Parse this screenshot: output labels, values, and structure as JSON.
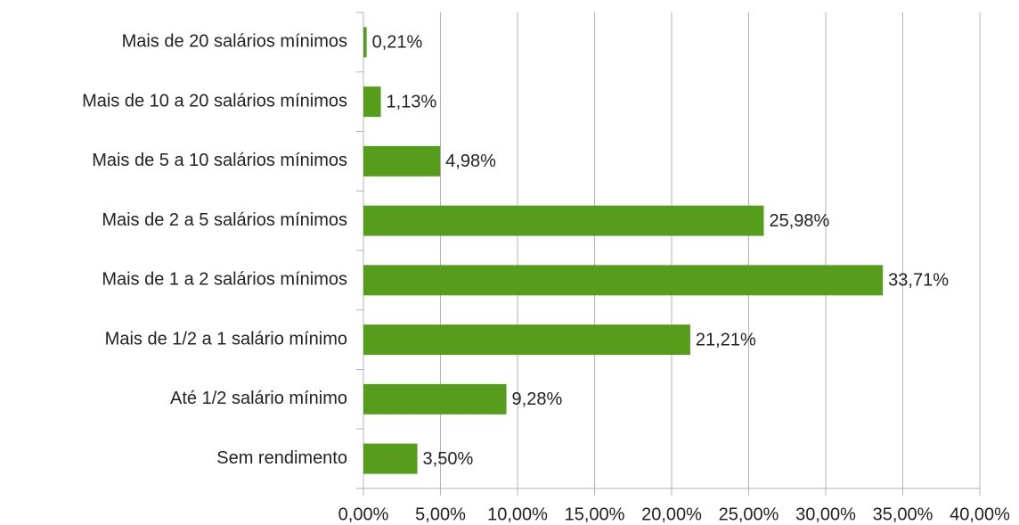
{
  "chart_data": {
    "type": "hbar",
    "categories": [
      "Mais de 20 salários mínimos",
      "Mais de 10 a 20 salários mínimos",
      "Mais de 5 a 10 salários mínimos",
      "Mais de 2 a 5 salários mínimos",
      "Mais de 1 a 2 salários mínimos",
      "Mais de 1/2 a 1 salário mínimo",
      "Até 1/2 salário mínimo",
      "Sem rendimento"
    ],
    "values": [
      0.21,
      1.13,
      4.98,
      25.98,
      33.71,
      21.21,
      9.28,
      3.5
    ],
    "value_labels": [
      "0,21%",
      "1,13%",
      "4,98%",
      "25,98%",
      "33,71%",
      "21,21%",
      "9,28%",
      "3,50%"
    ],
    "color": "#579d1c",
    "xlim": [
      0,
      40
    ],
    "xticks": [
      {
        "value": 0,
        "label": "0,00%"
      },
      {
        "value": 5,
        "label": "5,00%"
      },
      {
        "value": 10,
        "label": "10,00%"
      },
      {
        "value": 15,
        "label": "15,00%"
      },
      {
        "value": 20,
        "label": "20,00%"
      },
      {
        "value": 25,
        "label": "25,00%"
      },
      {
        "value": 30,
        "label": "30,00%"
      },
      {
        "value": 35,
        "label": "35,00%"
      },
      {
        "value": 40,
        "label": "40,00%"
      }
    ],
    "grid": true
  }
}
